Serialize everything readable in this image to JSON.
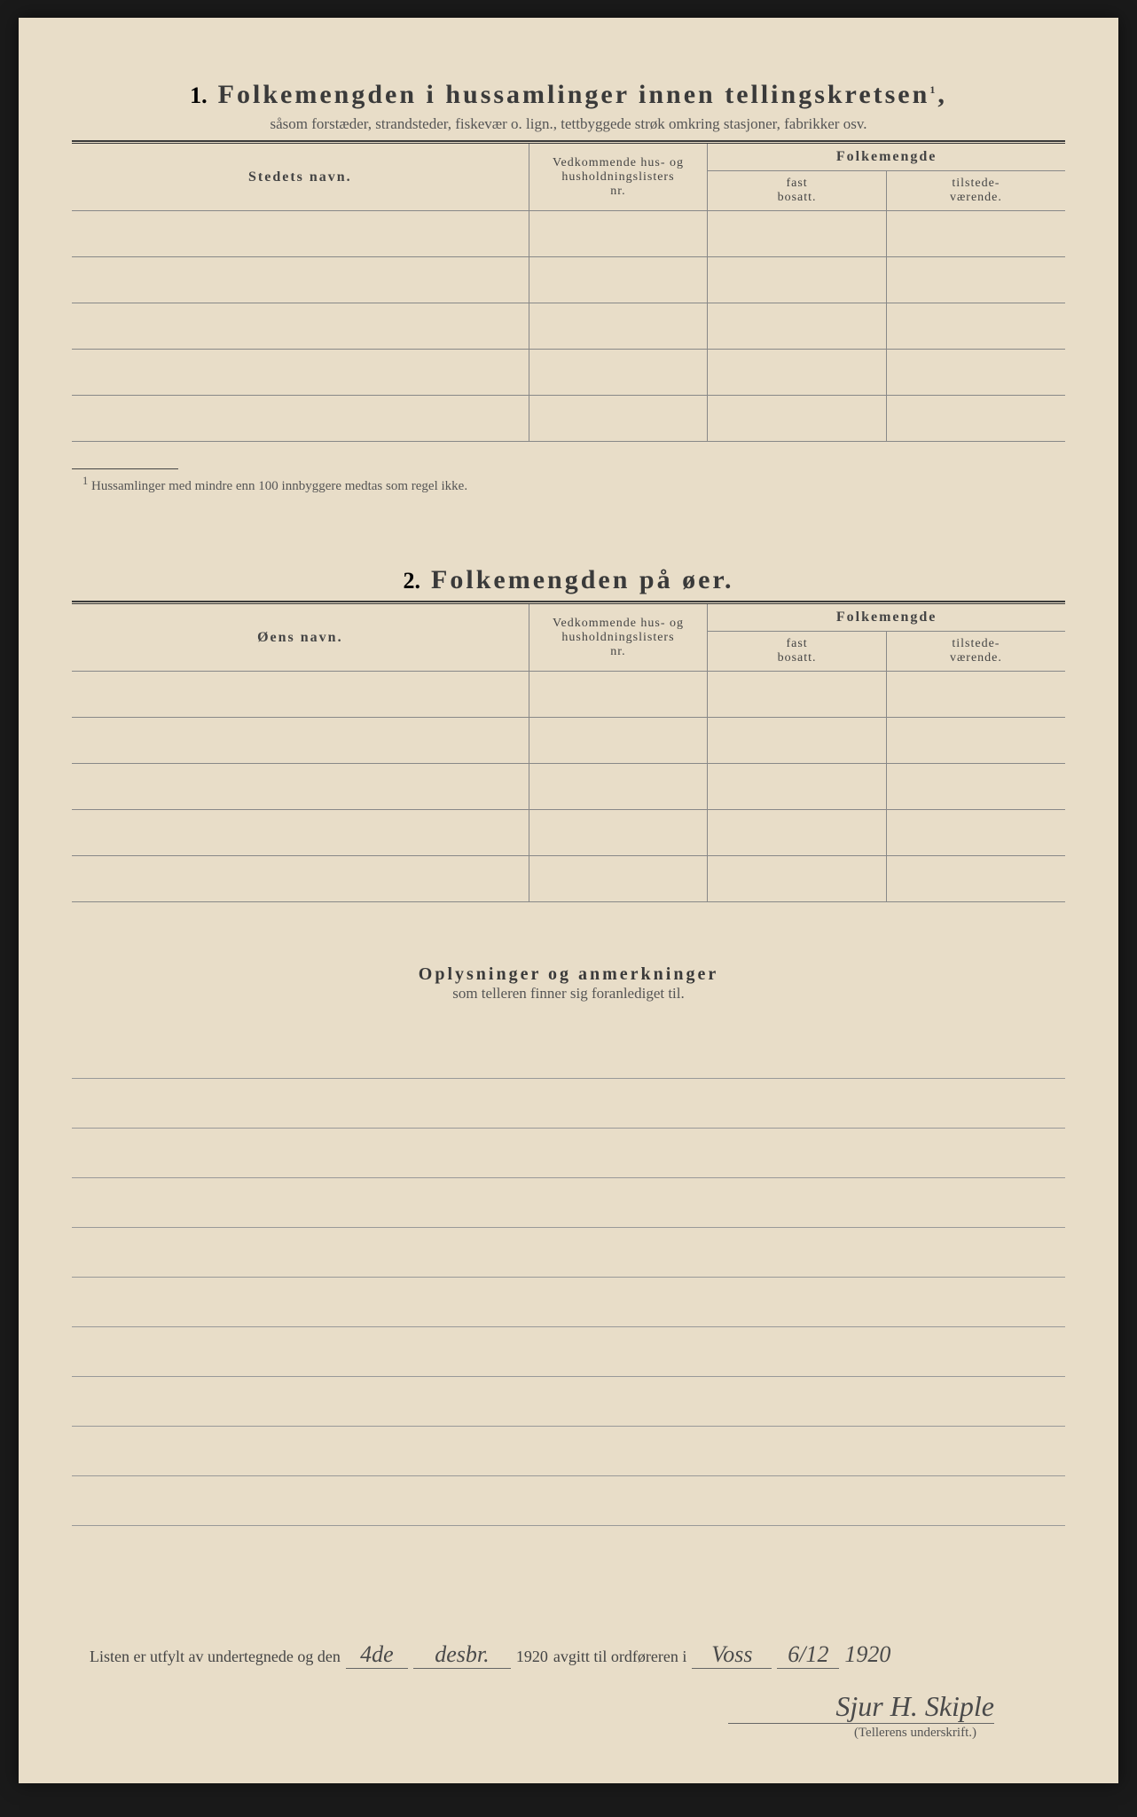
{
  "section1": {
    "number": "1.",
    "title": "Folkemengden i hussamlinger innen tellingskretsen",
    "title_sup": "1",
    "title_punct": ",",
    "subtitle": "såsom forstæder, strandsteder, fiskevær o. lign., tettbyggede strøk omkring stasjoner, fabrikker osv.",
    "col_name": "Stedets navn.",
    "col_mid_l1": "Vedkommende hus- og",
    "col_mid_l2": "husholdningslisters",
    "col_mid_l3": "nr.",
    "col_pop": "Folkemengde",
    "col_fast_l1": "fast",
    "col_fast_l2": "bosatt.",
    "col_til_l1": "tilstede-",
    "col_til_l2": "værende.",
    "footnote_sup": "1",
    "footnote": "Hussamlinger med mindre enn 100 innbyggere medtas som regel ikke.",
    "row_count": 5
  },
  "section2": {
    "number": "2.",
    "title": "Folkemengden på øer.",
    "col_name": "Øens navn.",
    "col_mid_l1": "Vedkommende hus- og",
    "col_mid_l2": "husholdningslisters",
    "col_mid_l3": "nr.",
    "col_pop": "Folkemengde",
    "col_fast_l1": "fast",
    "col_fast_l2": "bosatt.",
    "col_til_l1": "tilstede-",
    "col_til_l2": "værende.",
    "row_count": 5
  },
  "section3": {
    "title": "Oplysninger og anmerkninger",
    "subtitle": "som telleren finner sig foranlediget til.",
    "line_count": 10
  },
  "signature": {
    "prefix": "Listen er utfylt av undertegnede og den",
    "date_day": "4de",
    "date_month": "desbr.",
    "year": "1920",
    "mid": "avgitt til ordføreren i",
    "place": "Voss",
    "date2": "6/12",
    "year2": "1920",
    "name": "Sjur H. Skiple",
    "label": "(Tellerens underskrift.)"
  },
  "colors": {
    "paper": "#e8ddc8",
    "ink": "#3a3a3a",
    "rule": "#888"
  }
}
